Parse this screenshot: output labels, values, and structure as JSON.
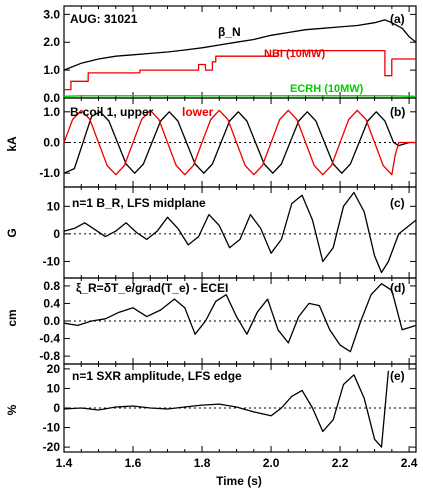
{
  "figure": {
    "xlabel": "Time (s)",
    "x_ticks": [
      "1.4",
      "1.6",
      "1.8",
      "2.0",
      "2.2",
      "2.4"
    ]
  },
  "colors": {
    "black": "#000000",
    "red": "#ee0000",
    "green": "#00cc00"
  },
  "chart_data": [
    {
      "type": "line",
      "panel_tag": "(a)",
      "title": "AUG: 31021",
      "xlim": [
        1.4,
        2.42
      ],
      "ylim": [
        0.0,
        3.3
      ],
      "y_ticks": [
        "0.0",
        "1.0",
        "2.0",
        "3.0"
      ],
      "ylabel": "",
      "zero_line": false,
      "series": [
        {
          "name": "β_N",
          "color": "#000000",
          "x": [
            1.4,
            1.45,
            1.5,
            1.55,
            1.6,
            1.65,
            1.7,
            1.75,
            1.8,
            1.85,
            1.9,
            1.95,
            2.0,
            2.05,
            2.1,
            2.15,
            2.2,
            2.25,
            2.3,
            2.33,
            2.35,
            2.38,
            2.4,
            2.42
          ],
          "y": [
            1.0,
            1.25,
            1.4,
            1.5,
            1.55,
            1.6,
            1.65,
            1.72,
            1.8,
            1.9,
            2.0,
            2.1,
            2.25,
            2.35,
            2.45,
            2.5,
            2.55,
            2.6,
            2.7,
            2.8,
            2.7,
            2.5,
            2.2,
            2.0
          ]
        },
        {
          "name": "NBI (10MW)",
          "color": "#ee0000",
          "x": [
            1.4,
            1.42,
            1.42,
            1.47,
            1.47,
            1.62,
            1.62,
            1.79,
            1.79,
            1.81,
            1.81,
            1.83,
            1.83,
            1.84,
            1.84,
            2.02,
            2.02,
            2.33,
            2.33,
            2.35,
            2.35,
            2.42
          ],
          "y": [
            0.3,
            0.3,
            0.6,
            0.6,
            0.9,
            0.9,
            1.0,
            1.0,
            1.2,
            1.2,
            1.0,
            1.0,
            1.3,
            1.3,
            1.5,
            1.5,
            1.7,
            1.7,
            0.8,
            0.8,
            1.4,
            1.4
          ]
        },
        {
          "name": "ECRH (10MW)",
          "color": "#00cc00",
          "x": [
            1.4,
            1.45,
            2.0,
            2.2,
            2.35,
            2.42
          ],
          "y": [
            0.06,
            0.08,
            0.08,
            0.08,
            0.08,
            0.06
          ]
        }
      ],
      "series_labels": [
        "β_N",
        "NBI (10MW)",
        "ECRH (10MW)"
      ]
    },
    {
      "type": "line",
      "panel_tag": "(b)",
      "title": "B-coil 1, upper",
      "xlim": [
        1.4,
        2.42
      ],
      "ylim": [
        -1.45,
        1.45
      ],
      "y_ticks": [
        "1.0",
        "0.0",
        "-1.0"
      ],
      "ylabel": "kA",
      "zero_line": true,
      "series": [
        {
          "name": "B-coil 1, upper",
          "color": "#000000",
          "x": [
            1.4,
            1.43,
            1.455,
            1.48,
            1.505,
            1.53,
            1.555,
            1.58,
            1.605,
            1.63,
            1.655,
            1.68,
            1.705,
            1.73,
            1.755,
            1.78,
            1.805,
            1.83,
            1.855,
            1.88,
            1.905,
            1.93,
            1.955,
            1.98,
            2.005,
            2.03,
            2.055,
            2.08,
            2.105,
            2.13,
            2.155,
            2.18,
            2.205,
            2.23,
            2.255,
            2.28,
            2.305,
            2.33,
            2.355,
            2.37,
            2.4,
            2.42
          ],
          "y": [
            -1.0,
            -0.85,
            0.0,
            0.85,
            1.0,
            0.7,
            0.0,
            -0.7,
            -1.0,
            -0.7,
            0.0,
            0.7,
            1.0,
            0.7,
            0.0,
            -0.7,
            -1.0,
            -0.7,
            0.0,
            0.7,
            1.0,
            0.7,
            0.0,
            -0.7,
            -1.0,
            -0.7,
            0.0,
            0.7,
            1.0,
            0.7,
            0.0,
            -0.7,
            -1.0,
            -0.7,
            0.0,
            0.7,
            1.0,
            0.7,
            0.0,
            -0.1,
            0.0,
            0.0
          ]
        },
        {
          "name": "lower",
          "color": "#ee0000",
          "x": [
            1.4,
            1.425,
            1.45,
            1.475,
            1.5,
            1.525,
            1.55,
            1.575,
            1.6,
            1.625,
            1.65,
            1.675,
            1.7,
            1.725,
            1.75,
            1.775,
            1.8,
            1.825,
            1.85,
            1.875,
            1.9,
            1.925,
            1.95,
            1.975,
            2.0,
            2.025,
            2.05,
            2.075,
            2.1,
            2.125,
            2.15,
            2.175,
            2.2,
            2.225,
            2.25,
            2.275,
            2.3,
            2.325,
            2.35,
            2.36,
            2.37,
            2.4,
            2.42
          ],
          "y": [
            0.0,
            0.75,
            1.05,
            0.75,
            0.0,
            -0.75,
            -1.05,
            -0.75,
            0.0,
            0.75,
            1.05,
            0.75,
            0.0,
            -0.75,
            -1.05,
            -0.75,
            0.0,
            0.75,
            1.05,
            0.75,
            0.0,
            -0.75,
            -1.05,
            -0.75,
            0.0,
            0.75,
            1.05,
            0.75,
            0.0,
            -0.75,
            -1.05,
            -0.75,
            0.0,
            0.75,
            1.05,
            0.75,
            0.0,
            -0.75,
            -1.05,
            -0.4,
            0.0,
            0.0,
            0.0
          ]
        }
      ],
      "series_labels": [
        "lower"
      ]
    },
    {
      "type": "line",
      "panel_tag": "(c)",
      "title": "n=1 B_R, LFS midplane",
      "xlim": [
        1.4,
        2.42
      ],
      "ylim": [
        -16,
        17
      ],
      "y_ticks": [
        "10",
        "0",
        "-10"
      ],
      "ylabel": "G",
      "zero_line": true,
      "series": [
        {
          "name": "n=1 B_R",
          "color": "#000000",
          "x": [
            1.4,
            1.43,
            1.46,
            1.49,
            1.52,
            1.55,
            1.58,
            1.61,
            1.64,
            1.67,
            1.7,
            1.73,
            1.76,
            1.79,
            1.82,
            1.85,
            1.88,
            1.91,
            1.94,
            1.97,
            2.0,
            2.03,
            2.06,
            2.09,
            2.12,
            2.15,
            2.18,
            2.21,
            2.24,
            2.27,
            2.3,
            2.32,
            2.34,
            2.37,
            2.4,
            2.42
          ],
          "y": [
            1.0,
            2.0,
            4.0,
            1.5,
            -1.0,
            1.0,
            4.0,
            0.5,
            -2.0,
            1.0,
            6.0,
            2.0,
            -4.0,
            -1.0,
            7.0,
            3.0,
            -5.0,
            -2.0,
            7.0,
            2.0,
            -7.0,
            -2.0,
            11.0,
            14.0,
            5.0,
            -10.0,
            -5.0,
            10.0,
            15.0,
            8.0,
            -8.0,
            -14.0,
            -10.0,
            0.0,
            3.0,
            5.0
          ]
        }
      ],
      "series_labels": []
    },
    {
      "type": "line",
      "panel_tag": "(d)",
      "title": "ξ_R=δT_e/grad(T_e) - ECEI",
      "xlim": [
        1.4,
        2.42
      ],
      "ylim": [
        -0.98,
        0.98
      ],
      "y_ticks": [
        "0.8",
        "0.4",
        "0.0",
        "-0.4",
        "-0.8"
      ],
      "ylabel": "cm",
      "zero_line": true,
      "series": [
        {
          "name": "ξ_R",
          "color": "#000000",
          "x": [
            1.4,
            1.44,
            1.48,
            1.52,
            1.56,
            1.6,
            1.64,
            1.68,
            1.72,
            1.75,
            1.78,
            1.81,
            1.84,
            1.87,
            1.9,
            1.93,
            1.96,
            1.99,
            2.02,
            2.05,
            2.08,
            2.11,
            2.14,
            2.17,
            2.2,
            2.23,
            2.26,
            2.29,
            2.32,
            2.35,
            2.38,
            2.42
          ],
          "y": [
            -0.05,
            -0.1,
            0.0,
            0.05,
            0.2,
            0.3,
            0.1,
            0.25,
            0.5,
            0.3,
            -0.3,
            0.0,
            0.45,
            0.6,
            0.1,
            -0.3,
            0.2,
            0.5,
            -0.2,
            -0.5,
            0.1,
            0.4,
            0.35,
            -0.2,
            -0.55,
            -0.7,
            0.0,
            0.6,
            0.85,
            0.7,
            -0.2,
            -0.1
          ]
        }
      ],
      "series_labels": []
    },
    {
      "type": "line",
      "panel_tag": "(e)",
      "title": "n=1 SXR amplitude, LFS edge",
      "xlim": [
        1.4,
        2.42
      ],
      "ylim": [
        -22.5,
        22.5
      ],
      "y_ticks": [
        "20",
        "10",
        "0",
        "-10",
        "-20"
      ],
      "ylabel": "%",
      "zero_line": true,
      "series": [
        {
          "name": "n=1 SXR amplitude",
          "color": "#000000",
          "x": [
            1.4,
            1.45,
            1.5,
            1.55,
            1.6,
            1.65,
            1.7,
            1.75,
            1.8,
            1.85,
            1.9,
            1.95,
            2.0,
            2.03,
            2.06,
            2.09,
            2.12,
            2.15,
            2.18,
            2.21,
            2.24,
            2.27,
            2.3,
            2.32,
            2.34
          ],
          "y": [
            -0.5,
            0.0,
            -1.0,
            0.5,
            1.0,
            0.0,
            -0.5,
            0.5,
            1.5,
            2.0,
            0.5,
            -2.0,
            -4.0,
            0.0,
            6.0,
            9.0,
            0.0,
            -12.0,
            -6.0,
            12.0,
            17.0,
            5.0,
            -16.0,
            -20.0,
            19.0
          ]
        }
      ],
      "series_labels": []
    }
  ]
}
